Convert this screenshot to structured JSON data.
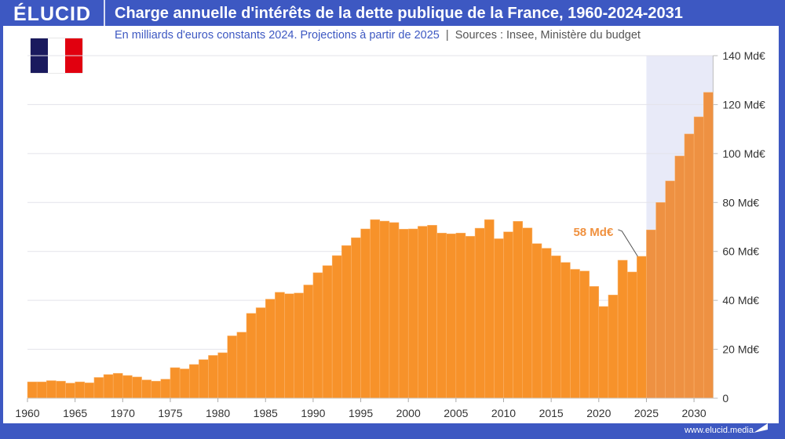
{
  "header": {
    "logo": "ÉLUCID",
    "title": "Charge annuelle d'intérêts de la dette publique de la France, 1960-2024-2031"
  },
  "subtitle": {
    "main": "En milliards d'euros constants 2024. Projections à partir de 2025",
    "separator": "|",
    "sources": "Sources : Insee, Ministère du budget"
  },
  "footer": {
    "url": "www.elucid.media"
  },
  "colors": {
    "brand": "#3d58c2",
    "bar": "#f7922a",
    "projection_bar": "#ee9142",
    "projection_band": "#e8eaf8",
    "flag": [
      "#1a1a5e",
      "#ffffff",
      "#e1000f"
    ]
  },
  "chart_data": {
    "type": "bar",
    "x": [
      1960,
      1961,
      1962,
      1963,
      1964,
      1965,
      1966,
      1967,
      1968,
      1969,
      1970,
      1971,
      1972,
      1973,
      1974,
      1975,
      1976,
      1977,
      1978,
      1979,
      1980,
      1981,
      1982,
      1983,
      1984,
      1985,
      1986,
      1987,
      1988,
      1989,
      1990,
      1991,
      1992,
      1993,
      1994,
      1995,
      1996,
      1997,
      1998,
      1999,
      2000,
      2001,
      2002,
      2003,
      2004,
      2005,
      2006,
      2007,
      2008,
      2009,
      2010,
      2011,
      2012,
      2013,
      2014,
      2015,
      2016,
      2017,
      2018,
      2019,
      2020,
      2021,
      2022,
      2023,
      2024,
      2025,
      2026,
      2027,
      2028,
      2029,
      2030,
      2031
    ],
    "values": [
      6.7,
      6.7,
      7.2,
      7,
      6.2,
      6.7,
      6.3,
      8.5,
      9.7,
      10.2,
      9.3,
      8.7,
      7.5,
      7,
      7.8,
      12.5,
      12,
      13.8,
      15.8,
      17.5,
      18.6,
      25.5,
      27,
      34.7,
      37,
      40.5,
      43.3,
      42.7,
      43,
      46.3,
      51.3,
      54.2,
      58.3,
      62.4,
      65.6,
      69.2,
      73,
      72.4,
      71.8,
      69.1,
      69.2,
      70.3,
      70.7,
      67.5,
      67.2,
      67.5,
      66.2,
      69.5,
      73,
      65.2,
      68,
      72.3,
      69.6,
      63.2,
      61.3,
      58.2,
      55.5,
      52.7,
      52,
      45.7,
      37.5,
      42.2,
      56.4,
      51.6,
      58,
      68.8,
      80,
      88.8,
      99,
      108,
      115,
      125
    ],
    "projection_start": 2025,
    "ylim": [
      0,
      140
    ],
    "yticks": [
      0,
      20,
      40,
      60,
      80,
      100,
      120,
      140
    ],
    "ytick_labels": [
      "0",
      "20 Md€",
      "40 Md€",
      "60 Md€",
      "80 Md€",
      "100 Md€",
      "120 Md€",
      "140 Md€"
    ],
    "xticks": [
      1960,
      1965,
      1970,
      1975,
      1980,
      1985,
      1990,
      1995,
      2000,
      2005,
      2010,
      2015,
      2020,
      2025,
      2030
    ],
    "xtick_labels": [
      "1960",
      "1965",
      "1970",
      "1975",
      "1980",
      "1985",
      "1990",
      "1995",
      "2000",
      "2005",
      "2010",
      "2015",
      "2020",
      "2025",
      "2030"
    ],
    "annotation": {
      "year": 2024,
      "text": "58 Md€"
    },
    "grid": true
  }
}
